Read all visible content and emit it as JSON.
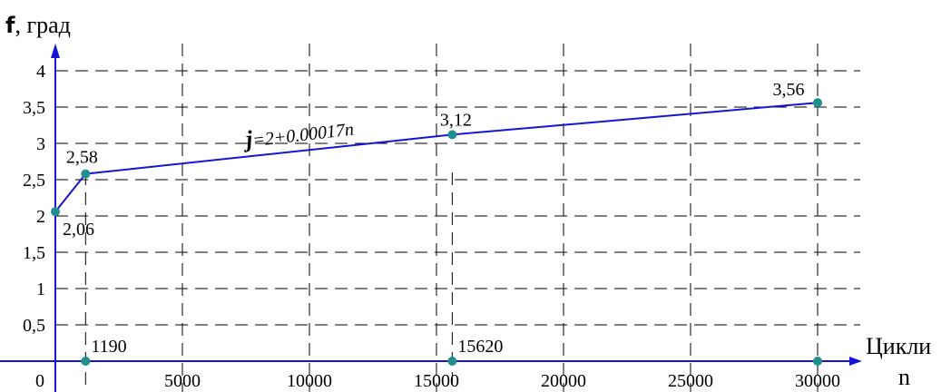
{
  "chart_data": {
    "type": "line",
    "y_title": {
      "symbol": "f",
      "text": ", град"
    },
    "x_title": {
      "line1": "Цикли",
      "line2": "n"
    },
    "xlim": [
      0,
      30000
    ],
    "ylim": [
      0,
      4
    ],
    "grid": true,
    "x_ticks": [
      {
        "value": 0,
        "label": "0"
      },
      {
        "value": 5000,
        "label": "5000"
      },
      {
        "value": 10000,
        "label": "10000"
      },
      {
        "value": 15000,
        "label": "15000"
      },
      {
        "value": 20000,
        "label": "20000"
      },
      {
        "value": 25000,
        "label": "25000"
      },
      {
        "value": 30000,
        "label": "30000"
      }
    ],
    "y_ticks": [
      {
        "value": 0.5,
        "label": "0,5"
      },
      {
        "value": 1,
        "label": "1"
      },
      {
        "value": 1.5,
        "label": "1,5"
      },
      {
        "value": 2,
        "label": "2"
      },
      {
        "value": 2.5,
        "label": "2,5"
      },
      {
        "value": 3,
        "label": "3"
      },
      {
        "value": 3.5,
        "label": "3,5"
      },
      {
        "value": 4,
        "label": "4"
      }
    ],
    "series": [
      {
        "color": "#1515d6",
        "marker_color": "#1f8f8f",
        "points": [
          {
            "x": 0,
            "y": 2.06,
            "label": "2,06"
          },
          {
            "x": 1190,
            "y": 2.58,
            "label": "2,58"
          },
          {
            "x": 15620,
            "y": 3.12,
            "label": "3,12"
          },
          {
            "x": 30000,
            "y": 3.56,
            "label": "3,56"
          }
        ]
      }
    ],
    "x_markers": [
      {
        "x": 1190,
        "label": "1190"
      },
      {
        "x": 15620,
        "label": "15620"
      },
      {
        "x": 30000,
        "label": ""
      }
    ],
    "equation": {
      "symbol": "j",
      "text": "=2+0.00017n"
    }
  }
}
